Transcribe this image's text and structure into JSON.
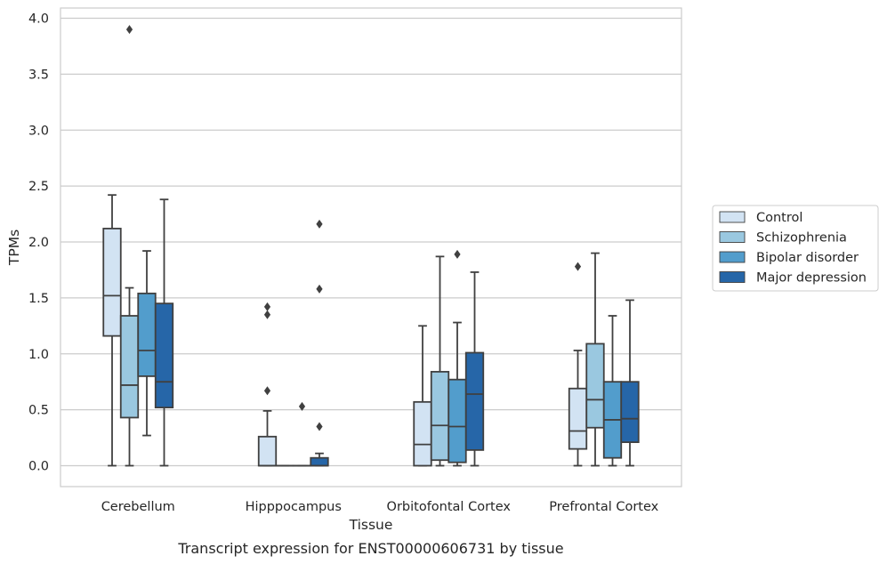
{
  "chart_data": {
    "type": "box",
    "title": "",
    "caption": "Transcript expression for ENST00000606731 by tissue",
    "xlabel": "Tissue",
    "ylabel": "TPMs",
    "ylim": [
      -0.19,
      4.1
    ],
    "yticks": [
      "0.0",
      "0.5",
      "1.0",
      "1.5",
      "2.0",
      "2.5",
      "3.0",
      "3.5",
      "4.0"
    ],
    "grid": "horizontal",
    "legend_position": "right",
    "categories": [
      "Cerebellum",
      "Hipppocampus",
      "Orbitofontal Cortex",
      "Prefrontal Cortex"
    ],
    "series": [
      {
        "name": "Control",
        "color": "#d2e3f3",
        "boxes": [
          {
            "whislo": 0.0,
            "q1": 1.16,
            "med": 1.52,
            "q3": 2.12,
            "whishi": 2.42,
            "fliers": []
          },
          {
            "whislo": 0.0,
            "q1": 0.0,
            "med": 0.0,
            "q3": 0.26,
            "whishi": 0.49,
            "fliers": [
              0.67,
              1.35,
              1.42
            ]
          },
          {
            "whislo": 0.0,
            "q1": 0.0,
            "med": 0.19,
            "q3": 0.57,
            "whishi": 1.25,
            "fliers": []
          },
          {
            "whislo": 0.0,
            "q1": 0.15,
            "med": 0.31,
            "q3": 0.69,
            "whishi": 1.03,
            "fliers": [
              1.78
            ]
          }
        ]
      },
      {
        "name": "Schizophrenia",
        "color": "#9ac8e0",
        "boxes": [
          {
            "whislo": 0.0,
            "q1": 0.43,
            "med": 0.72,
            "q3": 1.34,
            "whishi": 1.59,
            "fliers": [
              3.9
            ]
          },
          {
            "whislo": 0.0,
            "q1": 0.0,
            "med": 0.0,
            "q3": 0.0,
            "whishi": 0.0,
            "fliers": []
          },
          {
            "whislo": 0.0,
            "q1": 0.05,
            "med": 0.36,
            "q3": 0.84,
            "whishi": 1.87,
            "fliers": []
          },
          {
            "whislo": 0.0,
            "q1": 0.34,
            "med": 0.59,
            "q3": 1.09,
            "whishi": 1.9,
            "fliers": []
          }
        ]
      },
      {
        "name": "Bipolar disorder",
        "color": "#529dcc",
        "boxes": [
          {
            "whislo": 0.27,
            "q1": 0.8,
            "med": 1.03,
            "q3": 1.54,
            "whishi": 1.92,
            "fliers": []
          },
          {
            "whislo": 0.0,
            "q1": 0.0,
            "med": 0.0,
            "q3": 0.0,
            "whishi": 0.0,
            "fliers": [
              0.53
            ]
          },
          {
            "whislo": 0.0,
            "q1": 0.03,
            "med": 0.35,
            "q3": 0.77,
            "whishi": 1.28,
            "fliers": [
              1.89
            ]
          },
          {
            "whislo": 0.0,
            "q1": 0.07,
            "med": 0.41,
            "q3": 0.75,
            "whishi": 1.34,
            "fliers": []
          }
        ]
      },
      {
        "name": "Major depression",
        "color": "#2666a8",
        "boxes": [
          {
            "whislo": 0.0,
            "q1": 0.52,
            "med": 0.75,
            "q3": 1.45,
            "whishi": 2.38,
            "fliers": []
          },
          {
            "whislo": 0.0,
            "q1": 0.0,
            "med": 0.0,
            "q3": 0.07,
            "whishi": 0.11,
            "fliers": [
              0.35,
              1.58,
              2.16
            ]
          },
          {
            "whislo": 0.0,
            "q1": 0.14,
            "med": 0.64,
            "q3": 1.01,
            "whishi": 1.73,
            "fliers": []
          },
          {
            "whislo": 0.0,
            "q1": 0.21,
            "med": 0.42,
            "q3": 0.75,
            "whishi": 1.48,
            "fliers": []
          }
        ]
      }
    ]
  },
  "colors": {
    "grid": "#cccccc",
    "frame": "#cccccc",
    "line": "#404040",
    "text": "#262626"
  }
}
